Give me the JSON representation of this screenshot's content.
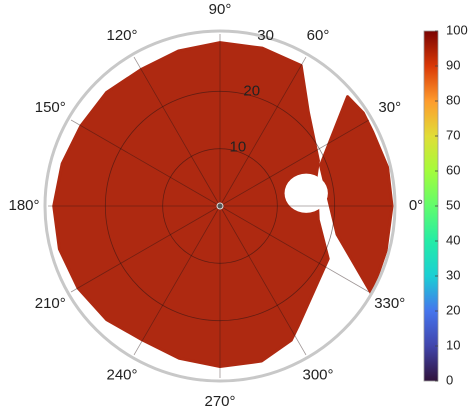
{
  "chart_data": {
    "type": "polar_region",
    "rlim": [
      0,
      30
    ],
    "rticks": [
      10,
      20,
      30
    ],
    "thetaticks": [
      {
        "value": 0,
        "label": "0°"
      },
      {
        "value": 30,
        "label": "30°"
      },
      {
        "value": 60,
        "label": "60°"
      },
      {
        "value": 90,
        "label": "90°"
      },
      {
        "value": 120,
        "label": "120°"
      },
      {
        "value": 150,
        "label": "150°"
      },
      {
        "value": 180,
        "label": "180°"
      },
      {
        "value": 210,
        "label": "210°"
      },
      {
        "value": 240,
        "label": "240°"
      },
      {
        "value": 270,
        "label": "270°"
      },
      {
        "value": 300,
        "label": "300°"
      },
      {
        "value": 330,
        "label": "330°"
      }
    ],
    "grid": true,
    "regions": [
      {
        "value": 95,
        "theta": [
          60,
          75,
          90,
          105,
          120,
          135,
          150,
          165,
          180,
          195,
          210,
          225,
          240,
          255,
          270,
          285,
          298,
          303,
          334,
          352,
          17.5,
          24.7,
          46.8
        ],
        "r": [
          28.3,
          28.5,
          28.5,
          28,
          27.5,
          28,
          28,
          28.5,
          29,
          29,
          28.6,
          28,
          27,
          27.5,
          28,
          28,
          26.5,
          25,
          21,
          17.3,
          17.6,
          18.9,
          22.5
        ]
      },
      {
        "value": 95,
        "theta": [
          40.6,
          33,
          26,
          13,
          0,
          345,
          330,
          346.4,
          22
        ],
        "r": [
          29.3,
          29.8,
          29.6,
          30,
          30,
          30,
          30.5,
          21,
          18.9
        ]
      }
    ],
    "hole": {
      "theta": 8.4,
      "r": 15.2,
      "radius": 3.6
    },
    "colorbar": {
      "clim": [
        0,
        100
      ],
      "ticks": [
        0,
        10,
        20,
        30,
        40,
        50,
        60,
        70,
        80,
        90,
        100
      ]
    }
  }
}
